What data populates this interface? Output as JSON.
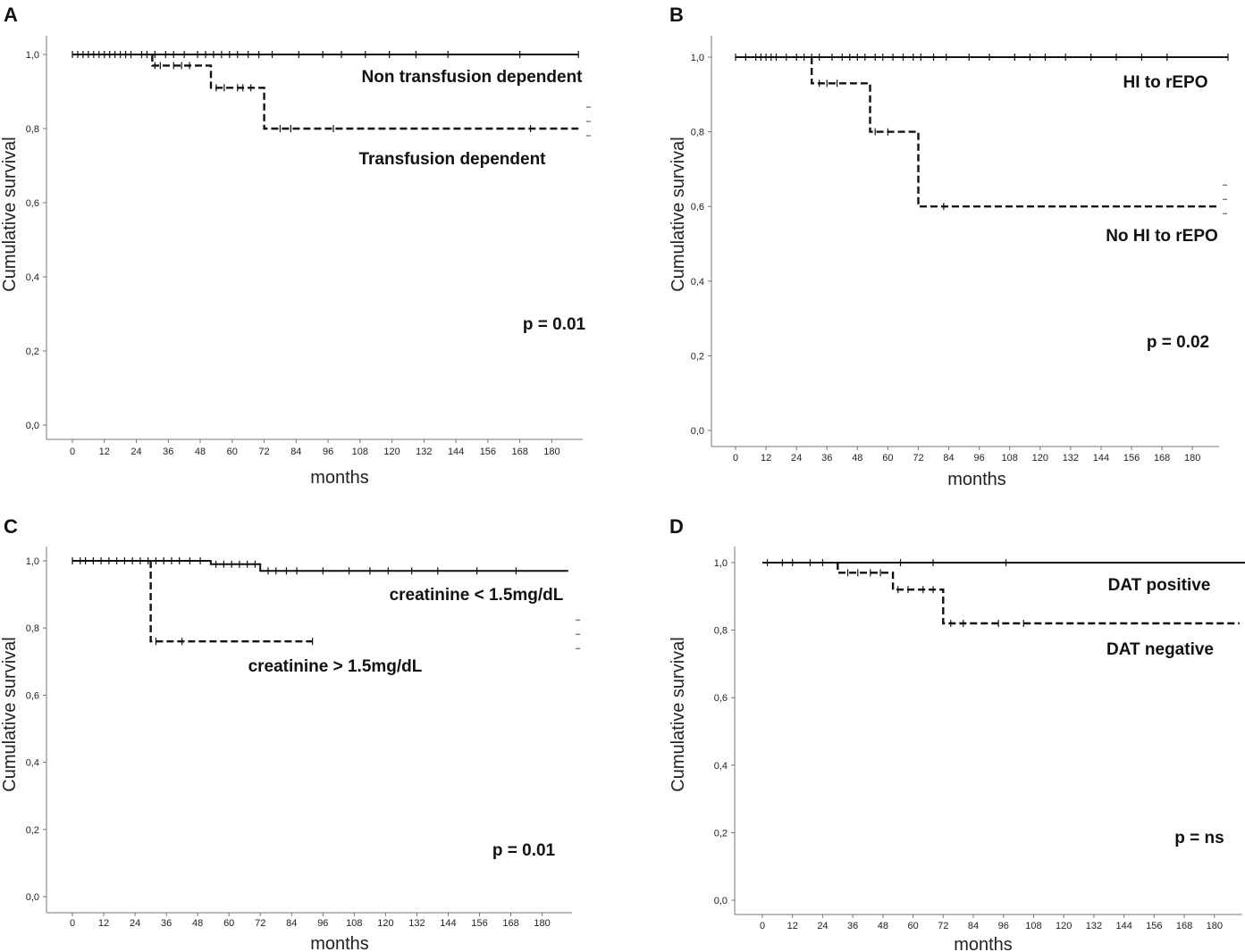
{
  "chart_data": [
    {
      "type": "line",
      "panel": "A",
      "ylabel": "Cumulative survival",
      "xlabel": "months",
      "x_ticks": [
        "0",
        "12",
        "24",
        "36",
        "48",
        "60",
        "72",
        "84",
        "96",
        "108",
        "120",
        "132",
        "144",
        "156",
        "168",
        "180"
      ],
      "y_ticks": [
        "0,0",
        "0,2",
        "0,4",
        "0,6",
        "0,8",
        "1,0"
      ],
      "xlim": [
        0,
        190
      ],
      "ylim": [
        0,
        1.0
      ],
      "p_value": "p = 0.01",
      "series": [
        {
          "name": "Non transfusion dependent",
          "style": "solid",
          "steps": [
            [
              0,
              1.0
            ],
            [
              190,
              1.0
            ]
          ],
          "censor": [
            [
              0,
              1
            ],
            [
              2,
              1
            ],
            [
              4,
              1
            ],
            [
              6,
              1
            ],
            [
              8,
              1
            ],
            [
              10,
              1
            ],
            [
              12,
              1
            ],
            [
              14,
              1
            ],
            [
              16,
              1
            ],
            [
              18,
              1
            ],
            [
              20,
              1
            ],
            [
              22,
              1
            ],
            [
              26,
              1
            ],
            [
              28,
              1
            ],
            [
              31,
              1
            ],
            [
              35,
              1
            ],
            [
              38,
              1
            ],
            [
              42,
              1
            ],
            [
              47,
              1
            ],
            [
              50,
              1
            ],
            [
              53,
              1
            ],
            [
              56,
              1
            ],
            [
              59,
              1
            ],
            [
              62,
              1
            ],
            [
              66,
              1
            ],
            [
              70,
              1
            ],
            [
              75,
              1
            ],
            [
              85,
              1
            ],
            [
              94,
              1
            ],
            [
              101,
              1
            ],
            [
              110,
              1
            ],
            [
              119,
              1
            ],
            [
              129,
              1
            ],
            [
              141,
              1
            ],
            [
              168,
              1
            ],
            [
              190,
              1
            ]
          ]
        },
        {
          "name": "Transfusion dependent",
          "style": "dashed",
          "steps": [
            [
              30,
              1.0
            ],
            [
              30,
              0.97
            ],
            [
              52,
              0.97
            ],
            [
              52,
              0.91
            ],
            [
              72,
              0.91
            ],
            [
              72,
              0.8
            ],
            [
              190,
              0.8
            ]
          ],
          "censor": [
            [
              31,
              0.97
            ],
            [
              33,
              0.97
            ],
            [
              38,
              0.97
            ],
            [
              41,
              0.97
            ],
            [
              44,
              0.97
            ],
            [
              54,
              0.91
            ],
            [
              57,
              0.91
            ],
            [
              62,
              0.91
            ],
            [
              64,
              0.91
            ],
            [
              67,
              0.91
            ],
            [
              78,
              0.8
            ],
            [
              82,
              0.8
            ],
            [
              98,
              0.8
            ],
            [
              172,
              0.8
            ]
          ]
        }
      ],
      "annotations": [
        {
          "text": "Non transfusion dependent",
          "series": 0
        },
        {
          "text": "Transfusion dependent",
          "series": 1
        }
      ]
    },
    {
      "type": "line",
      "panel": "B",
      "ylabel": "Cumulative survival",
      "xlabel": "months",
      "x_ticks": [
        "0",
        "12",
        "24",
        "36",
        "48",
        "60",
        "72",
        "84",
        "96",
        "108",
        "120",
        "132",
        "144",
        "156",
        "168",
        "180"
      ],
      "y_ticks": [
        "0,0",
        "0,2",
        "0,4",
        "0,6",
        "0,8",
        "1,0"
      ],
      "xlim": [
        0,
        190
      ],
      "ylim": [
        0,
        1.0
      ],
      "p_value": "p = 0.02",
      "series": [
        {
          "name": "HI to rEPO",
          "style": "solid",
          "steps": [
            [
              0,
              1.0
            ],
            [
              194,
              1.0
            ]
          ],
          "censor": [
            [
              0,
              1
            ],
            [
              4,
              1
            ],
            [
              8,
              1
            ],
            [
              10,
              1
            ],
            [
              12,
              1
            ],
            [
              14,
              1
            ],
            [
              16,
              1
            ],
            [
              20,
              1
            ],
            [
              24,
              1
            ],
            [
              27,
              1
            ],
            [
              30,
              1
            ],
            [
              33,
              1
            ],
            [
              38,
              1
            ],
            [
              42,
              1
            ],
            [
              45,
              1
            ],
            [
              48,
              1
            ],
            [
              51,
              1
            ],
            [
              55,
              1
            ],
            [
              58,
              1
            ],
            [
              62,
              1
            ],
            [
              66,
              1
            ],
            [
              70,
              1
            ],
            [
              73,
              1
            ],
            [
              78,
              1
            ],
            [
              83,
              1
            ],
            [
              92,
              1
            ],
            [
              100,
              1
            ],
            [
              110,
              1
            ],
            [
              116,
              1
            ],
            [
              122,
              1
            ],
            [
              130,
              1
            ],
            [
              140,
              1
            ],
            [
              150,
              1
            ],
            [
              160,
              1
            ],
            [
              170,
              1
            ],
            [
              194,
              1
            ]
          ]
        },
        {
          "name": "No HI to rEPO",
          "style": "dashed",
          "steps": [
            [
              30,
              1.0
            ],
            [
              30,
              0.93
            ],
            [
              53,
              0.93
            ],
            [
              53,
              0.8
            ],
            [
              72,
              0.8
            ],
            [
              72,
              0.6
            ],
            [
              190,
              0.6
            ]
          ],
          "censor": [
            [
              33,
              0.93
            ],
            [
              36,
              0.93
            ],
            [
              40,
              0.93
            ],
            [
              55,
              0.8
            ],
            [
              60,
              0.8
            ],
            [
              82,
              0.6
            ]
          ]
        }
      ],
      "annotations": [
        {
          "text": "HI to rEPO",
          "series": 0
        },
        {
          "text": "No HI to rEPO",
          "series": 1
        }
      ]
    },
    {
      "type": "line",
      "panel": "C",
      "ylabel": "Cumulative survival",
      "xlabel": "months",
      "x_ticks": [
        "0",
        "12",
        "24",
        "36",
        "48",
        "60",
        "72",
        "84",
        "96",
        "108",
        "120",
        "132",
        "144",
        "156",
        "168",
        "180"
      ],
      "y_ticks": [
        "0,0",
        "0,2",
        "0,4",
        "0,6",
        "0,8",
        "1,0"
      ],
      "xlim": [
        0,
        190
      ],
      "ylim": [
        0,
        1.0
      ],
      "p_value": "p = 0.01",
      "series": [
        {
          "name": "creatinine < 1.5mg/dL",
          "style": "solid",
          "steps": [
            [
              0,
              1.0
            ],
            [
              53,
              1.0
            ],
            [
              53,
              0.99
            ],
            [
              72,
              0.99
            ],
            [
              72,
              0.97
            ],
            [
              190,
              0.97
            ]
          ],
          "censor": [
            [
              0,
              1
            ],
            [
              3,
              1
            ],
            [
              5,
              1
            ],
            [
              8,
              1
            ],
            [
              11,
              1
            ],
            [
              14,
              1
            ],
            [
              17,
              1
            ],
            [
              20,
              1
            ],
            [
              23,
              1
            ],
            [
              26,
              1
            ],
            [
              29,
              1
            ],
            [
              32,
              1
            ],
            [
              35,
              1
            ],
            [
              38,
              1
            ],
            [
              41,
              1
            ],
            [
              45,
              1
            ],
            [
              49,
              1
            ],
            [
              55,
              0.99
            ],
            [
              58,
              0.99
            ],
            [
              61,
              0.99
            ],
            [
              64,
              0.99
            ],
            [
              67,
              0.99
            ],
            [
              70,
              0.99
            ],
            [
              75,
              0.97
            ],
            [
              78,
              0.97
            ],
            [
              82,
              0.97
            ],
            [
              86,
              0.97
            ],
            [
              96,
              0.97
            ],
            [
              106,
              0.97
            ],
            [
              114,
              0.97
            ],
            [
              121,
              0.97
            ],
            [
              130,
              0.97
            ],
            [
              140,
              0.97
            ],
            [
              155,
              0.97
            ],
            [
              170,
              0.97
            ]
          ]
        },
        {
          "name": "creatinine > 1.5mg/dL",
          "style": "dashed",
          "steps": [
            [
              30,
              1.0
            ],
            [
              30,
              0.76
            ],
            [
              92,
              0.76
            ]
          ],
          "censor": [
            [
              32,
              0.76
            ],
            [
              42,
              0.76
            ],
            [
              92,
              0.76
            ]
          ]
        }
      ],
      "annotations": [
        {
          "text": "creatinine < 1.5mg/dL",
          "series": 0
        },
        {
          "text": "creatinine > 1.5mg/dL",
          "series": 1
        }
      ]
    },
    {
      "type": "line",
      "panel": "D",
      "ylabel": "Cumulative survival",
      "xlabel": "months",
      "x_ticks": [
        "0",
        "12",
        "24",
        "36",
        "48",
        "60",
        "72",
        "84",
        "96",
        "108",
        "120",
        "132",
        "144",
        "156",
        "168",
        "180"
      ],
      "y_ticks": [
        "0,0",
        "0,2",
        "0,4",
        "0,6",
        "0,8",
        "1,0"
      ],
      "xlim": [
        0,
        190
      ],
      "ylim": [
        0,
        1.0
      ],
      "p_value": "p = ns",
      "series": [
        {
          "name": "DAT positive",
          "style": "solid",
          "steps": [
            [
              0,
              1.0
            ],
            [
              194,
              1.0
            ]
          ],
          "censor": [
            [
              2,
              1
            ],
            [
              8,
              1
            ],
            [
              12,
              1
            ],
            [
              19,
              1
            ],
            [
              24,
              1
            ],
            [
              55,
              1
            ],
            [
              68,
              1
            ],
            [
              97,
              1
            ],
            [
              194,
              1
            ]
          ]
        },
        {
          "name": "DAT negative",
          "style": "dashed",
          "steps": [
            [
              30,
              1.0
            ],
            [
              30,
              0.97
            ],
            [
              52,
              0.97
            ],
            [
              52,
              0.92
            ],
            [
              72,
              0.92
            ],
            [
              72,
              0.82
            ],
            [
              190,
              0.82
            ]
          ],
          "censor": [
            [
              34,
              0.97
            ],
            [
              38,
              0.97
            ],
            [
              43,
              0.97
            ],
            [
              47,
              0.97
            ],
            [
              54,
              0.92
            ],
            [
              58,
              0.92
            ],
            [
              64,
              0.92
            ],
            [
              68,
              0.92
            ],
            [
              75,
              0.82
            ],
            [
              80,
              0.82
            ],
            [
              94,
              0.82
            ],
            [
              104,
              0.82
            ]
          ]
        }
      ],
      "annotations": [
        {
          "text": "DAT positive",
          "series": 0
        },
        {
          "text": "DAT negative",
          "series": 1
        }
      ]
    }
  ]
}
